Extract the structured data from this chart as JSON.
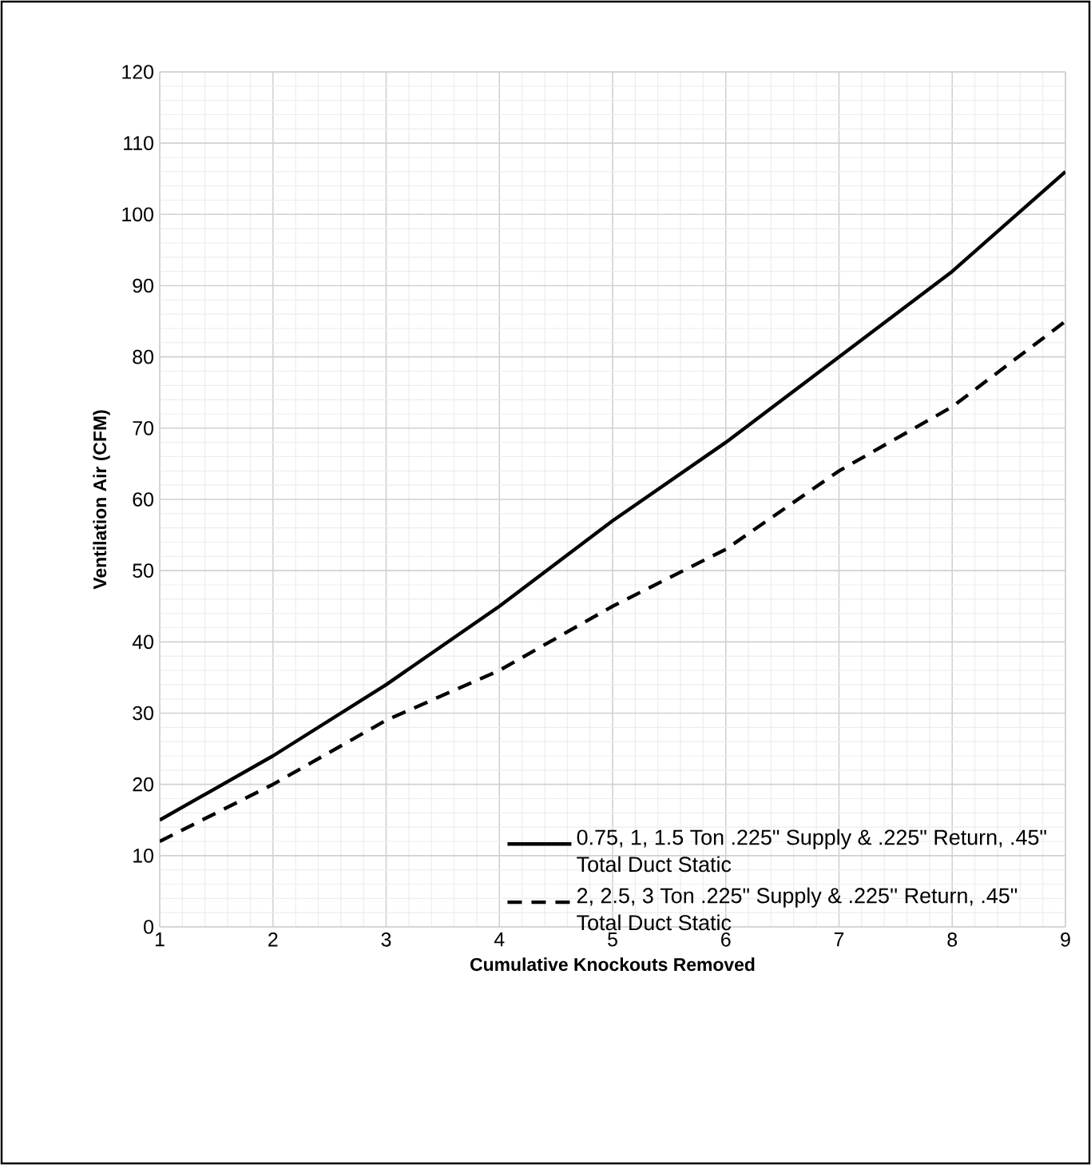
{
  "chart_data": {
    "type": "line",
    "xlabel": "Cumulative Knockouts Removed",
    "ylabel": "Ventilation Air (CFM)",
    "x": [
      1,
      2,
      3,
      4,
      5,
      6,
      7,
      8,
      9
    ],
    "series": [
      {
        "name": "0.75, 1, 1.5 Ton .225\" Supply & .225\" Return, .45\" Total Duct Static",
        "color": "#000000",
        "line_style": "solid",
        "values": [
          15,
          24,
          34,
          45,
          57,
          68,
          80,
          92,
          106
        ]
      },
      {
        "name": "2, 2.5, 3 Ton .225\" Supply & .225'' Return, .45\" Total Duct Static",
        "color": "#000000",
        "line_style": "dashed",
        "values": [
          12,
          20,
          29,
          36,
          45,
          53,
          64,
          73,
          85
        ]
      }
    ],
    "xlim": [
      1,
      9
    ],
    "xticks": [
      1,
      2,
      3,
      4,
      5,
      6,
      7,
      8,
      9
    ],
    "ylim": [
      0,
      120
    ],
    "yticks": [
      0,
      10,
      20,
      30,
      40,
      50,
      60,
      70,
      80,
      90,
      100,
      110,
      120
    ],
    "grid": true,
    "legend": "bottom right",
    "marker": "none"
  }
}
